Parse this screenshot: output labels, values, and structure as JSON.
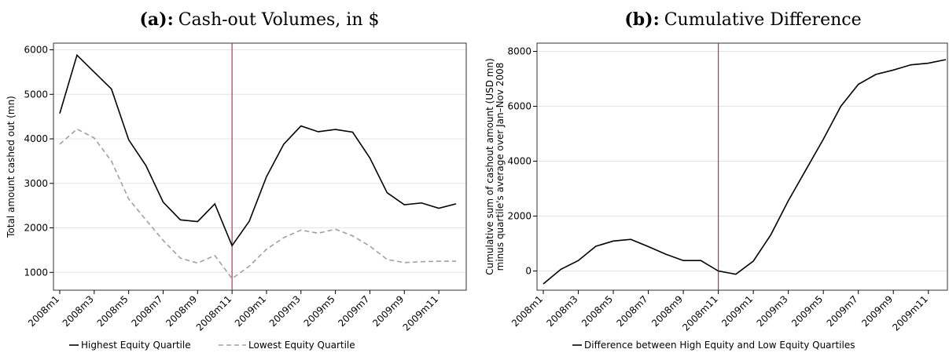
{
  "chart_data": [
    {
      "type": "line",
      "title_label": "(a):",
      "title": "Cash-out Volumes, in $",
      "ylabel": "Total amount cashed out (mn)",
      "categories": [
        "2008m1",
        null,
        "2008m3",
        null,
        "2008m5",
        null,
        "2008m7",
        null,
        "2008m9",
        null,
        "2008m11",
        null,
        "2009m1",
        null,
        "2009m3",
        null,
        "2009m5",
        null,
        "2009m7",
        null,
        "2009m9",
        null,
        "2009m11",
        null
      ],
      "series": [
        {
          "name": "Highest Equity Quartile",
          "color": "#000000",
          "dash": false,
          "values": [
            4570,
            5880,
            5500,
            5120,
            3980,
            3400,
            2580,
            2180,
            2140,
            2540,
            1600,
            2150,
            3150,
            3880,
            4290,
            4160,
            4210,
            4150,
            3570,
            2790,
            2520,
            2560,
            2440,
            2540
          ]
        },
        {
          "name": "Lowest Equity Quartile",
          "color": "#a0a0a0",
          "dash": true,
          "values": [
            3880,
            4220,
            4020,
            3500,
            2650,
            2180,
            1720,
            1320,
            1210,
            1380,
            860,
            1140,
            1520,
            1780,
            1950,
            1880,
            1970,
            1820,
            1590,
            1290,
            1220,
            1240,
            1250,
            1250
          ]
        }
      ],
      "ylim": [
        600,
        6150
      ],
      "yticks": [
        1000,
        2000,
        3000,
        4000,
        5000,
        6000
      ],
      "grid": true,
      "vline_index": 10,
      "vline_color": "#a8336b"
    },
    {
      "type": "line",
      "title_label": "(b):",
      "title": "Cumulative Difference",
      "ylabel": [
        "Cumulative sum of cashout amount (USD mn)",
        "minus quartile's average over Jan–Nov 2008"
      ],
      "categories": [
        "2008m1",
        null,
        "2008m3",
        null,
        "2008m5",
        null,
        "2008m7",
        null,
        "2008m9",
        null,
        "2008m11",
        null,
        "2009m1",
        null,
        "2009m3",
        null,
        "2009m5",
        null,
        "2009m7",
        null,
        "2009m9",
        null,
        "2009m11",
        null
      ],
      "series": [
        {
          "name": "Difference between High Equity and Low Equity Quartiles",
          "color": "#000000",
          "dash": false,
          "values": [
            -470,
            60,
            380,
            900,
            1090,
            1150,
            890,
            610,
            380,
            380,
            0,
            -120,
            360,
            1320,
            2560,
            3680,
            4800,
            6000,
            6800,
            7160,
            7320,
            7510,
            7570,
            7700
          ]
        }
      ],
      "ylim": [
        -700,
        8300
      ],
      "yticks": [
        0,
        2000,
        4000,
        6000,
        8000
      ],
      "grid": true,
      "vline_index": 10,
      "vline_color": "#a8336b"
    }
  ]
}
